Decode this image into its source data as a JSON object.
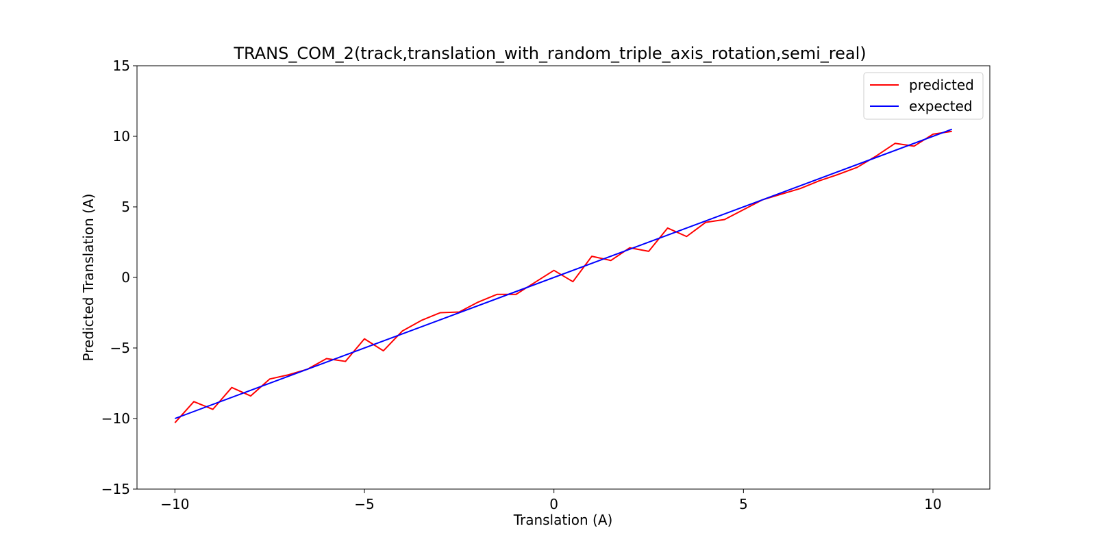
{
  "chart_data": {
    "type": "line",
    "title": "TRANS_COM_2(track,translation_with_random_triple_axis_rotation,semi_real)",
    "xlabel": "Translation (A)",
    "ylabel": "Predicted Translation (A)",
    "xlim": [
      -11,
      11.5
    ],
    "ylim": [
      -15,
      15
    ],
    "xticks": [
      -10,
      -5,
      0,
      5,
      10
    ],
    "yticks": [
      -15,
      -10,
      -5,
      0,
      5,
      10,
      15
    ],
    "xtick_labels": [
      "−10",
      "−5",
      "0",
      "5",
      "10"
    ],
    "ytick_labels": [
      "−15",
      "−10",
      "−5",
      "0",
      "5",
      "10",
      "15"
    ],
    "grid": false,
    "legend_position": "top-right",
    "series": [
      {
        "name": "predicted",
        "color": "#ff0000",
        "x": [
          -10,
          -9.5,
          -9,
          -8.5,
          -8,
          -7.5,
          -7,
          -6.5,
          -6,
          -5.5,
          -5,
          -4.5,
          -4,
          -3.5,
          -3,
          -2.5,
          -2,
          -1.5,
          -1,
          -0.5,
          0,
          0.5,
          1,
          1.5,
          2,
          2.5,
          3,
          3.5,
          4,
          4.5,
          5,
          5.5,
          6,
          6.5,
          7,
          7.5,
          8,
          8.5,
          9,
          9.5,
          10,
          10.5
        ],
        "y": [
          -10.3,
          -8.8,
          -9.35,
          -7.8,
          -8.4,
          -7.2,
          -6.9,
          -6.5,
          -5.75,
          -5.95,
          -4.35,
          -5.2,
          -3.8,
          -3.05,
          -2.5,
          -2.45,
          -1.75,
          -1.2,
          -1.2,
          -0.35,
          0.5,
          -0.3,
          1.5,
          1.2,
          2.1,
          1.85,
          3.5,
          2.9,
          3.9,
          4.1,
          4.8,
          5.5,
          5.9,
          6.3,
          6.85,
          7.3,
          7.8,
          8.6,
          9.5,
          9.3,
          10.15,
          10.35
        ]
      },
      {
        "name": "expected",
        "color": "#0000ff",
        "x": [
          -10,
          10.5
        ],
        "y": [
          -10,
          10.5
        ]
      }
    ]
  }
}
